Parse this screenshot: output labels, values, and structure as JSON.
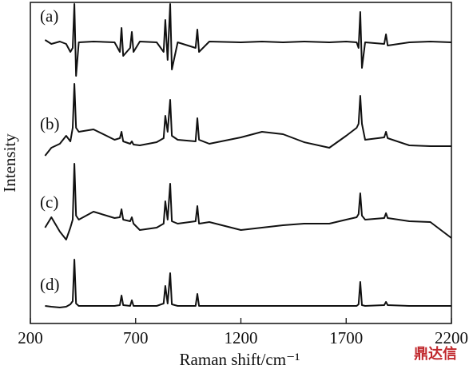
{
  "chart_data": {
    "type": "line",
    "x_label": "Raman shift/cm⁻¹",
    "y_label": "Intensity",
    "xlim": [
      200,
      2200
    ],
    "xticks": [
      200,
      700,
      1200,
      1700,
      2200
    ],
    "ylim": [
      0,
      400
    ],
    "x": [
      270,
      300,
      340,
      370,
      390,
      401,
      409,
      417,
      430,
      500,
      600,
      625,
      633,
      641,
      674,
      682,
      690,
      720,
      800,
      833,
      841,
      852,
      864,
      872,
      900,
      985,
      993,
      1001,
      1050,
      1200,
      1300,
      1400,
      1500,
      1620,
      1700,
      1750,
      1759,
      1767,
      1775,
      1790,
      1881,
      1889,
      1897,
      2000,
      2100,
      2200
    ],
    "series": [
      {
        "name": "(a)",
        "color": "#111111",
        "values": [
          355,
          350,
          353,
          350,
          340,
          345,
          400,
          310,
          352,
          353,
          352,
          340,
          370,
          335,
          345,
          365,
          340,
          353,
          352,
          340,
          380,
          330,
          400,
          318,
          352,
          345,
          368,
          340,
          353,
          352,
          353,
          352,
          353,
          352,
          353,
          352,
          345,
          390,
          320,
          352,
          350,
          362,
          348,
          352,
          353,
          352
        ]
      },
      {
        "name": "(b)",
        "color": "#111111",
        "values": [
          210,
          220,
          225,
          235,
          228,
          245,
          300,
          245,
          240,
          243,
          230,
          232,
          240,
          228,
          225,
          228,
          224,
          223,
          227,
          232,
          260,
          240,
          280,
          235,
          230,
          228,
          257,
          230,
          225,
          233,
          240,
          237,
          227,
          220,
          235,
          245,
          250,
          285,
          250,
          230,
          233,
          240,
          232,
          223,
          222,
          222
        ]
      },
      {
        "name": "(c)",
        "color": "#111111",
        "values": [
          120,
          133,
          115,
          105,
          120,
          130,
          200,
          135,
          130,
          140,
          132,
          133,
          143,
          130,
          128,
          133,
          125,
          117,
          120,
          125,
          153,
          130,
          175,
          128,
          125,
          128,
          147,
          125,
          127,
          117,
          120,
          123,
          125,
          125,
          130,
          133,
          137,
          163,
          135,
          130,
          132,
          138,
          132,
          128,
          127,
          107
        ]
      },
      {
        "name": "(d)",
        "color": "#111111",
        "values": [
          22,
          21,
          20,
          21,
          24,
          28,
          80,
          25,
          22,
          22,
          22,
          23,
          35,
          23,
          22,
          29,
          22,
          22,
          22,
          25,
          47,
          25,
          63,
          24,
          22,
          22,
          37,
          22,
          22,
          22,
          22,
          22,
          22,
          22,
          22,
          22,
          24,
          52,
          23,
          22,
          23,
          27,
          23,
          22,
          22,
          22
        ]
      }
    ],
    "watermark": "鼎达信"
  }
}
